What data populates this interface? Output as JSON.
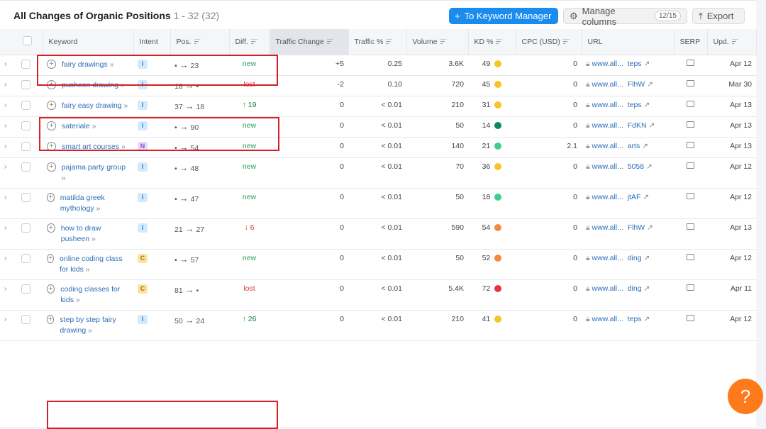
{
  "header": {
    "title": "All Changes of Organic Positions",
    "count": "1 - 32 (32)",
    "keyword_manager": "To Keyword Manager",
    "manage_columns": "Manage columns",
    "columns_badge": "12/15",
    "export": "Export"
  },
  "columns": [
    "Keyword",
    "Intent",
    "Pos.",
    "Diff.",
    "Traffic Change",
    "Traffic %",
    "Volume",
    "KD %",
    "CPC (USD)",
    "URL",
    "SERP",
    "Upd."
  ],
  "kd_colors": {
    "yellow": "#f7c325",
    "darkgreen": "#0d8a5a",
    "green": "#3ecf8e",
    "orange": "#f58a3c",
    "red": "#e5343d"
  },
  "rows": [
    {
      "keyword": "fairy drawings",
      "intent": "I",
      "pos_from": "•",
      "pos_to": "23",
      "diff": "new",
      "diff_type": "new",
      "traffic_change": "+5",
      "traffic_pct": "0.25",
      "volume": "3.6K",
      "kd": "49",
      "kd_color": "#f7c325",
      "cpc": "0",
      "url_start": "www.all...",
      "url_end": "teps",
      "upd": "Apr 12"
    },
    {
      "keyword": "pusheen drawing",
      "intent": "I",
      "pos_from": "18",
      "pos_to": "•",
      "diff": "lost",
      "diff_type": "lost",
      "traffic_change": "-2",
      "traffic_pct": "0.10",
      "volume": "720",
      "kd": "45",
      "kd_color": "#f7c325",
      "cpc": "0",
      "url_start": "www.all...",
      "url_end": "FlhW",
      "upd": "Mar 30"
    },
    {
      "keyword": "fairy easy drawing",
      "intent": "I",
      "pos_from": "37",
      "pos_to": "18",
      "diff": "↑ 19",
      "diff_type": "up",
      "traffic_change": "0",
      "traffic_pct": "< 0.01",
      "volume": "210",
      "kd": "31",
      "kd_color": "#f7c325",
      "cpc": "0",
      "url_start": "www.all...",
      "url_end": "teps",
      "upd": "Apr 13"
    },
    {
      "keyword": "sateriale",
      "intent": "I",
      "pos_from": "•",
      "pos_to": "90",
      "diff": "new",
      "diff_type": "new",
      "traffic_change": "0",
      "traffic_pct": "< 0.01",
      "volume": "50",
      "kd": "14",
      "kd_color": "#0d8a5a",
      "cpc": "0",
      "url_start": "www.all...",
      "url_end": "FdKN",
      "upd": "Apr 13"
    },
    {
      "keyword": "smart art courses",
      "intent": "N",
      "pos_from": "•",
      "pos_to": "54",
      "diff": "new",
      "diff_type": "new",
      "traffic_change": "0",
      "traffic_pct": "< 0.01",
      "volume": "140",
      "kd": "21",
      "kd_color": "#3ecf8e",
      "cpc": "2.1",
      "url_start": "www.all...",
      "url_end": "arts",
      "upd": "Apr 13"
    },
    {
      "keyword": "pajama party group",
      "intent": "I",
      "pos_from": "•",
      "pos_to": "48",
      "diff": "new",
      "diff_type": "new",
      "traffic_change": "0",
      "traffic_pct": "< 0.01",
      "volume": "70",
      "kd": "36",
      "kd_color": "#f7c325",
      "cpc": "0",
      "url_start": "www.all...",
      "url_end": "5058",
      "upd": "Apr 12"
    },
    {
      "keyword": "matilda greek mythology",
      "intent": "I",
      "pos_from": "•",
      "pos_to": "47",
      "diff": "new",
      "diff_type": "new",
      "traffic_change": "0",
      "traffic_pct": "< 0.01",
      "volume": "50",
      "kd": "18",
      "kd_color": "#3ecf8e",
      "cpc": "0",
      "url_start": "www.all...",
      "url_end": "jtAF",
      "upd": "Apr 12"
    },
    {
      "keyword": "how to draw pusheen",
      "intent": "I",
      "pos_from": "21",
      "pos_to": "27",
      "diff": "↓ 6",
      "diff_type": "down",
      "traffic_change": "0",
      "traffic_pct": "< 0.01",
      "volume": "590",
      "kd": "54",
      "kd_color": "#f58a3c",
      "cpc": "0",
      "url_start": "www.all...",
      "url_end": "FlhW",
      "upd": "Apr 13"
    },
    {
      "keyword": "online coding class for kids",
      "intent": "C",
      "pos_from": "•",
      "pos_to": "57",
      "diff": "new",
      "diff_type": "new",
      "traffic_change": "0",
      "traffic_pct": "< 0.01",
      "volume": "50",
      "kd": "52",
      "kd_color": "#f58a3c",
      "cpc": "0",
      "url_start": "www.all...",
      "url_end": "ding",
      "upd": "Apr 12"
    },
    {
      "keyword": "coding classes for kids",
      "intent": "C",
      "pos_from": "81",
      "pos_to": "•",
      "diff": "lost",
      "diff_type": "lost",
      "traffic_change": "0",
      "traffic_pct": "< 0.01",
      "volume": "5.4K",
      "kd": "72",
      "kd_color": "#e5343d",
      "cpc": "0",
      "url_start": "www.all...",
      "url_end": "ding",
      "upd": "Apr 11"
    },
    {
      "keyword": "step by step fairy drawing",
      "intent": "I",
      "pos_from": "50",
      "pos_to": "24",
      "diff": "↑ 26",
      "diff_type": "up",
      "traffic_change": "0",
      "traffic_pct": "< 0.01",
      "volume": "210",
      "kd": "41",
      "kd_color": "#f7c325",
      "cpc": "0",
      "url_start": "www.all...",
      "url_end": "teps",
      "upd": "Apr 12"
    }
  ],
  "help": "?"
}
